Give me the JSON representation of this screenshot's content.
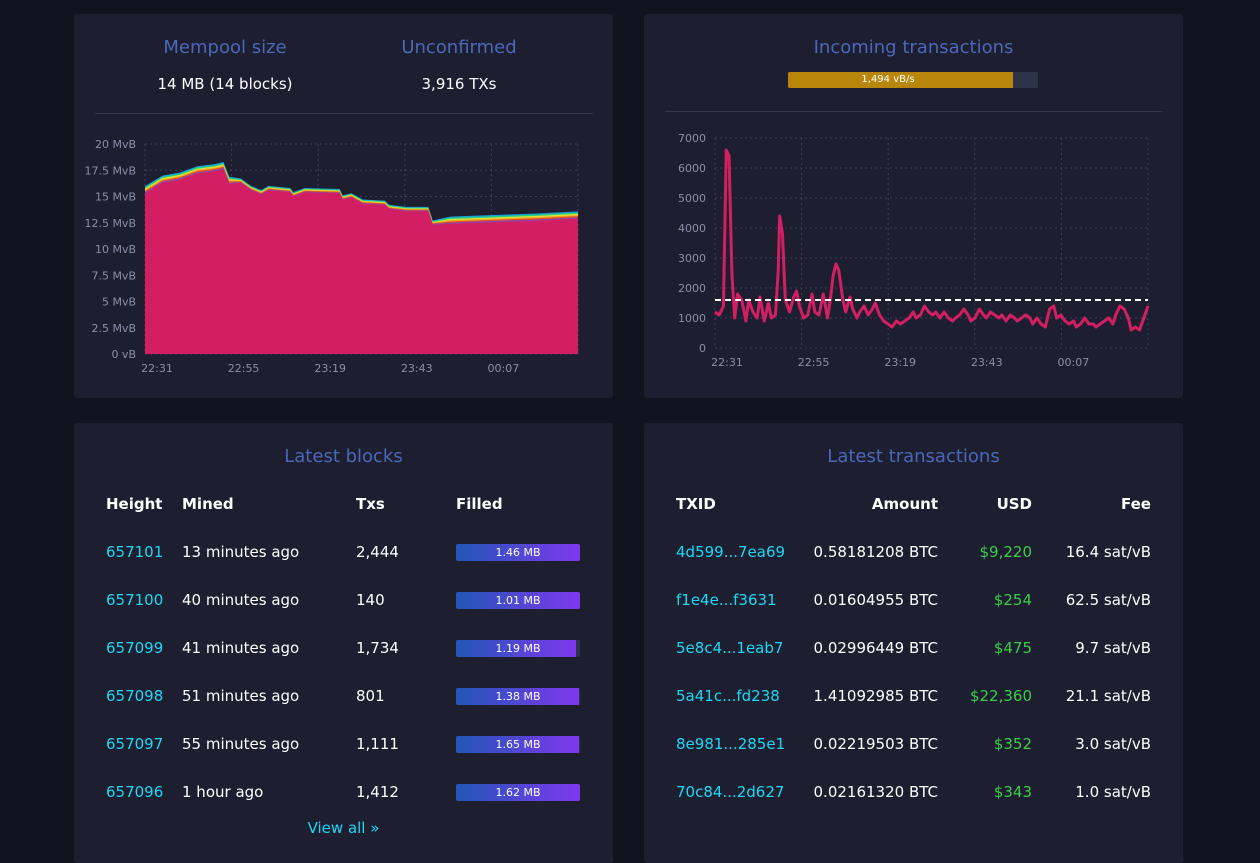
{
  "mempool": {
    "size_title": "Mempool size",
    "size_value": "14 MB (14 blocks)",
    "unconfirmed_title": "Unconfirmed",
    "unconfirmed_value": "3,916 TXs"
  },
  "mempool_chart": {
    "type": "area",
    "ytick_labels": [
      "0 vB",
      "2.5 MvB",
      "5 MvB",
      "7.5 MvB",
      "10 MvB",
      "12.5 MvB",
      "15 MvB",
      "17.5 MvB",
      "20 MvB"
    ],
    "xtick_labels": [
      "22:31",
      "22:55",
      "23:19",
      "23:43",
      "00:07"
    ],
    "ylim": [
      0,
      20
    ],
    "y_unit": "MvB",
    "grid": true,
    "color": "#d21f63",
    "layer_colors": [
      "#1a9ed8",
      "#2ad07c",
      "#d8e33b",
      "#f5a623",
      "#e24c2a",
      "#8e44ad"
    ],
    "points": [
      [
        0,
        15.3
      ],
      [
        1.2,
        16.3
      ],
      [
        2.4,
        16.6
      ],
      [
        3.6,
        17.2
      ],
      [
        4.8,
        17.4
      ],
      [
        5.4,
        17.6
      ],
      [
        5.8,
        16.2
      ],
      [
        6.6,
        16.3
      ],
      [
        7.3,
        15.6
      ],
      [
        8.0,
        15.2
      ],
      [
        8.5,
        15.6
      ],
      [
        10.0,
        15.4
      ],
      [
        10.2,
        15.0
      ],
      [
        11.0,
        15.4
      ],
      [
        13.4,
        15.3
      ],
      [
        13.6,
        14.7
      ],
      [
        14.2,
        14.9
      ],
      [
        15.0,
        14.3
      ],
      [
        16.5,
        14.2
      ],
      [
        16.8,
        13.8
      ],
      [
        18.0,
        13.6
      ],
      [
        19.5,
        13.6
      ],
      [
        19.8,
        12.3
      ],
      [
        21.0,
        12.4
      ],
      [
        23.0,
        12.5
      ],
      [
        25.0,
        12.6
      ],
      [
        27.0,
        12.7
      ],
      [
        29.8,
        12.9
      ]
    ]
  },
  "incoming": {
    "title": "Incoming transactions",
    "progress_label": "1,494 vB/s",
    "progress_fraction": 0.9
  },
  "incoming_chart": {
    "type": "line",
    "ytick_labels": [
      "0",
      "1000",
      "2000",
      "3000",
      "4000",
      "5000",
      "6000",
      "7000"
    ],
    "xtick_labels": [
      "22:31",
      "22:55",
      "23:19",
      "23:43",
      "00:07"
    ],
    "ylim": [
      0,
      7000
    ],
    "threshold": 1600,
    "grid": true,
    "color": "#d21f63",
    "points": [
      [
        0,
        1200
      ],
      [
        0.3,
        1100
      ],
      [
        0.6,
        1400
      ],
      [
        0.8,
        6600
      ],
      [
        1.0,
        6400
      ],
      [
        1.2,
        2500
      ],
      [
        1.4,
        1000
      ],
      [
        1.6,
        1800
      ],
      [
        1.9,
        1600
      ],
      [
        2.2,
        900
      ],
      [
        2.4,
        1600
      ],
      [
        2.7,
        1200
      ],
      [
        3.0,
        1000
      ],
      [
        3.2,
        1700
      ],
      [
        3.5,
        900
      ],
      [
        3.8,
        1500
      ],
      [
        4.0,
        1000
      ],
      [
        4.3,
        1100
      ],
      [
        4.5,
        2600
      ],
      [
        4.6,
        4400
      ],
      [
        4.8,
        3800
      ],
      [
        5.0,
        1600
      ],
      [
        5.3,
        1200
      ],
      [
        5.6,
        1700
      ],
      [
        5.8,
        1900
      ],
      [
        6.0,
        1400
      ],
      [
        6.3,
        1000
      ],
      [
        6.6,
        1100
      ],
      [
        6.9,
        1800
      ],
      [
        7.1,
        1200
      ],
      [
        7.4,
        1100
      ],
      [
        7.7,
        1800
      ],
      [
        8.0,
        1000
      ],
      [
        8.2,
        1600
      ],
      [
        8.4,
        2400
      ],
      [
        8.6,
        2800
      ],
      [
        8.8,
        2600
      ],
      [
        9.1,
        1600
      ],
      [
        9.3,
        1200
      ],
      [
        9.6,
        1700
      ],
      [
        9.8,
        1300
      ],
      [
        10.1,
        1000
      ],
      [
        10.3,
        1200
      ],
      [
        10.6,
        1400
      ],
      [
        10.9,
        1100
      ],
      [
        11.2,
        1300
      ],
      [
        11.4,
        1500
      ],
      [
        11.7,
        1100
      ],
      [
        12.0,
        900
      ],
      [
        12.3,
        800
      ],
      [
        12.6,
        700
      ],
      [
        12.9,
        900
      ],
      [
        13.2,
        800
      ],
      [
        13.5,
        900
      ],
      [
        13.8,
        1000
      ],
      [
        14.1,
        1200
      ],
      [
        14.3,
        1000
      ],
      [
        14.6,
        1100
      ],
      [
        14.9,
        1400
      ],
      [
        15.2,
        1200
      ],
      [
        15.5,
        1100
      ],
      [
        15.7,
        1200
      ],
      [
        16.0,
        1000
      ],
      [
        16.3,
        1200
      ],
      [
        16.6,
        1000
      ],
      [
        16.9,
        900
      ],
      [
        17.1,
        1000
      ],
      [
        17.4,
        1100
      ],
      [
        17.7,
        1300
      ],
      [
        18.0,
        1100
      ],
      [
        18.2,
        900
      ],
      [
        18.5,
        1000
      ],
      [
        18.8,
        1300
      ],
      [
        19.1,
        1100
      ],
      [
        19.3,
        1000
      ],
      [
        19.6,
        1200
      ],
      [
        19.9,
        1100
      ],
      [
        20.2,
        1000
      ],
      [
        20.4,
        1100
      ],
      [
        20.7,
        900
      ],
      [
        21.0,
        1100
      ],
      [
        21.3,
        1000
      ],
      [
        21.5,
        900
      ],
      [
        21.8,
        1000
      ],
      [
        22.1,
        1100
      ],
      [
        22.4,
        1000
      ],
      [
        22.6,
        800
      ],
      [
        22.9,
        1000
      ],
      [
        23.2,
        800
      ],
      [
        23.5,
        700
      ],
      [
        23.8,
        1300
      ],
      [
        24.1,
        1400
      ],
      [
        24.3,
        1000
      ],
      [
        24.6,
        1100
      ],
      [
        24.9,
        900
      ],
      [
        25.2,
        800
      ],
      [
        25.5,
        900
      ],
      [
        25.7,
        700
      ],
      [
        26.0,
        800
      ],
      [
        26.3,
        1000
      ],
      [
        26.6,
        800
      ],
      [
        26.9,
        800
      ],
      [
        27.1,
        700
      ],
      [
        27.4,
        800
      ],
      [
        27.7,
        900
      ],
      [
        28.0,
        1000
      ],
      [
        28.3,
        800
      ],
      [
        28.5,
        1100
      ],
      [
        28.8,
        1400
      ],
      [
        29.1,
        1300
      ],
      [
        29.4,
        1000
      ],
      [
        29.6,
        600
      ],
      [
        29.9,
        700
      ],
      [
        30.2,
        600
      ],
      [
        30.5,
        1000
      ],
      [
        30.8,
        1400
      ]
    ]
  },
  "blocks": {
    "title": "Latest blocks",
    "headers": [
      "Height",
      "Mined",
      "Txs",
      "Filled"
    ],
    "rows": [
      {
        "height": "657101",
        "mined": "13 minutes ago",
        "txs": "2,444",
        "filled": "1.46 MB",
        "fill": 1.0
      },
      {
        "height": "657100",
        "mined": "40 minutes ago",
        "txs": "140",
        "filled": "1.01 MB",
        "fill": 1.0
      },
      {
        "height": "657099",
        "mined": "41 minutes ago",
        "txs": "1,734",
        "filled": "1.19 MB",
        "fill": 0.97
      },
      {
        "height": "657098",
        "mined": "51 minutes ago",
        "txs": "801",
        "filled": "1.38 MB",
        "fill": 0.99
      },
      {
        "height": "657097",
        "mined": "55 minutes ago",
        "txs": "1,111",
        "filled": "1.65 MB",
        "fill": 0.99
      },
      {
        "height": "657096",
        "mined": "1 hour ago",
        "txs": "1,412",
        "filled": "1.62 MB",
        "fill": 1.0
      }
    ],
    "view_all": "View all »"
  },
  "transactions": {
    "title": "Latest transactions",
    "headers": [
      "TXID",
      "Amount",
      "USD",
      "Fee"
    ],
    "rows": [
      {
        "txid": "4d599...7ea69",
        "amount": "0.58181208 BTC",
        "usd": "$9,220",
        "fee": "16.4 sat/vB"
      },
      {
        "txid": "f1e4e...f3631",
        "amount": "0.01604955 BTC",
        "usd": "$254",
        "fee": "62.5 sat/vB"
      },
      {
        "txid": "5e8c4...1eab7",
        "amount": "0.02996449 BTC",
        "usd": "$475",
        "fee": "9.7 sat/vB"
      },
      {
        "txid": "5a41c...fd238",
        "amount": "1.41092985 BTC",
        "usd": "$22,360",
        "fee": "21.1 sat/vB"
      },
      {
        "txid": "8e981...285e1",
        "amount": "0.02219503 BTC",
        "usd": "$352",
        "fee": "3.0 sat/vB"
      },
      {
        "txid": "70c84...2d627",
        "amount": "0.02161320 BTC",
        "usd": "$343",
        "fee": "1.0 sat/vB"
      }
    ]
  }
}
